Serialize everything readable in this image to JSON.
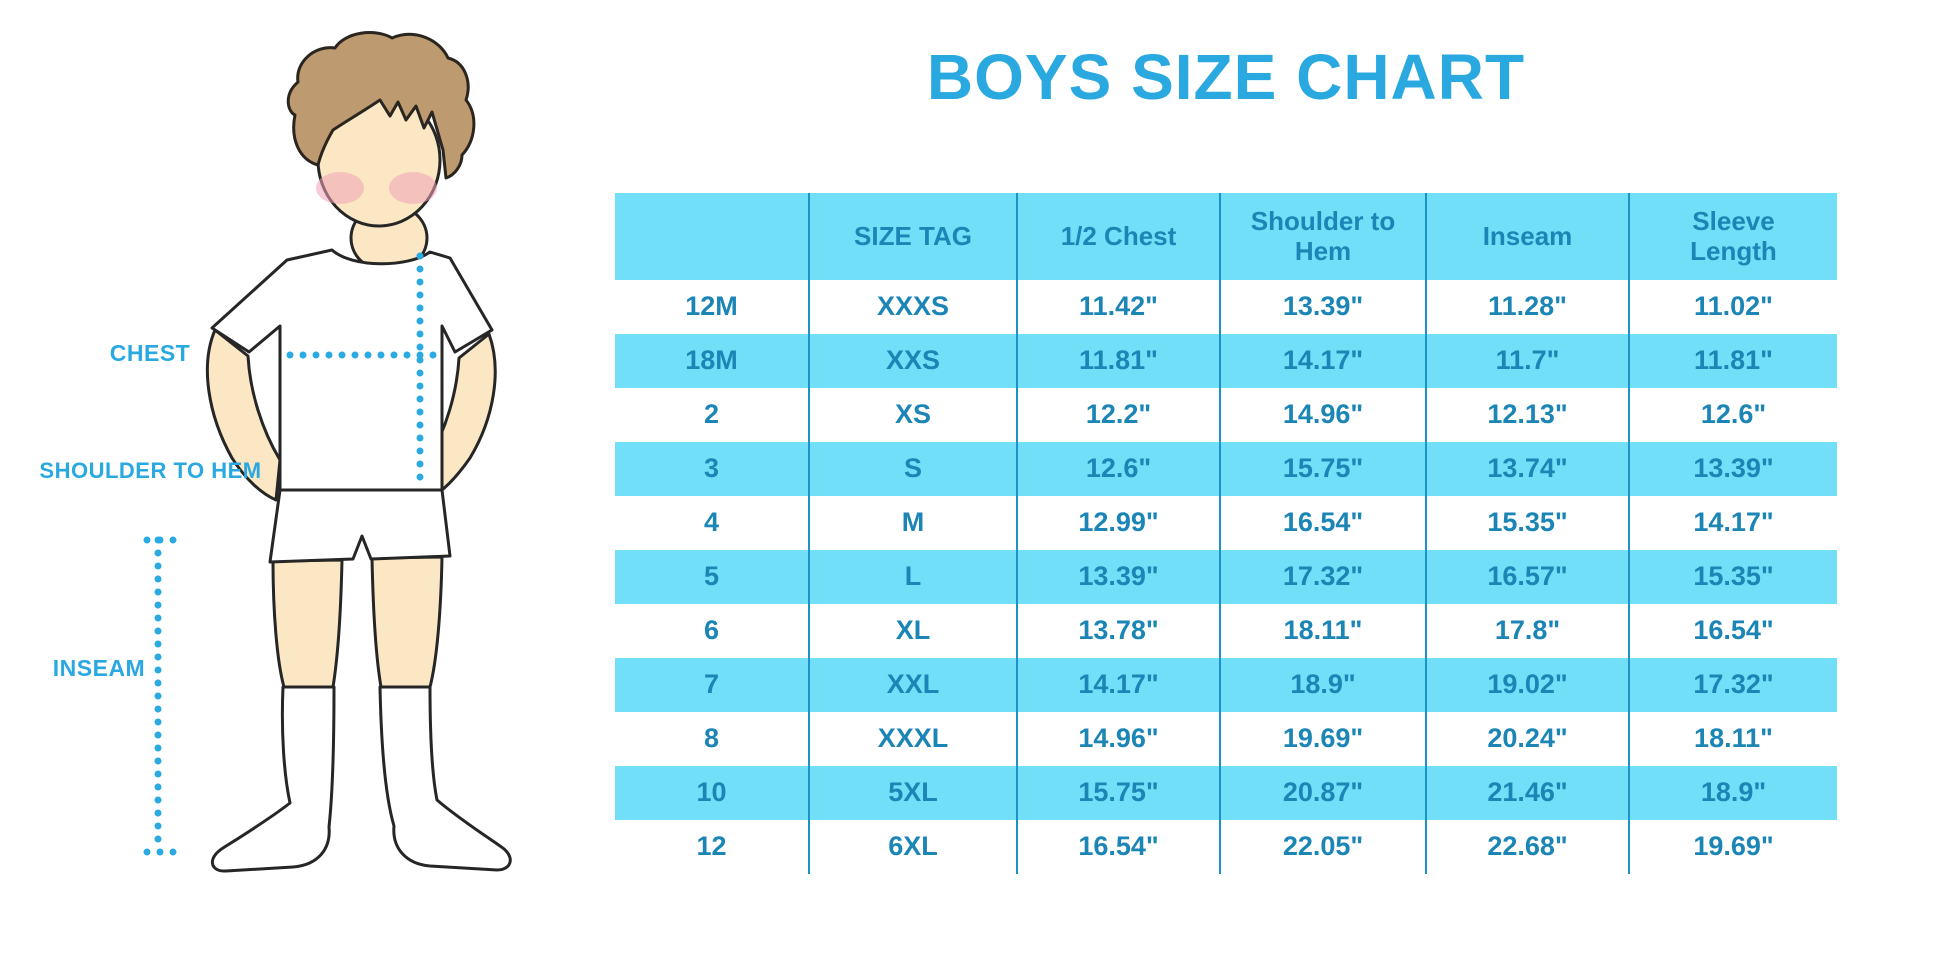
{
  "title": "BOYS SIZE CHART",
  "colors": {
    "title_blue": "#29A9E0",
    "table_text_blue": "#1B85B6",
    "row_fill_blue": "#70DFF7",
    "divider_blue": "#1B93C8",
    "dotted_line_blue": "#2BAAE2",
    "hair_brown": "#BD9A70",
    "skin": "#FBE7C4",
    "cheek_pink": "#F0A3B8"
  },
  "figure": {
    "chest_label": "CHEST",
    "shoulder_to_hem_label": "SHOULDER TO HEM",
    "inseam_label": "INSEAM"
  },
  "chart_data": {
    "type": "table",
    "title": "BOYS SIZE CHART",
    "columns": [
      "",
      "SIZE TAG",
      "1/2 Chest",
      "Shoulder to Hem",
      "Inseam",
      "Sleeve Length"
    ],
    "rows": [
      [
        "12M",
        "XXXS",
        "11.42\"",
        "13.39\"",
        "11.28\"",
        "11.02\""
      ],
      [
        "18M",
        "XXS",
        "11.81\"",
        "14.17\"",
        "11.7\"",
        "11.81\""
      ],
      [
        "2",
        "XS",
        "12.2\"",
        "14.96\"",
        "12.13\"",
        "12.6\""
      ],
      [
        "3",
        "S",
        "12.6\"",
        "15.75\"",
        "13.74\"",
        "13.39\""
      ],
      [
        "4",
        "M",
        "12.99\"",
        "16.54\"",
        "15.35\"",
        "14.17\""
      ],
      [
        "5",
        "L",
        "13.39\"",
        "17.32\"",
        "16.57\"",
        "15.35\""
      ],
      [
        "6",
        "XL",
        "13.78\"",
        "18.11\"",
        "17.8\"",
        "16.54\""
      ],
      [
        "7",
        "XXL",
        "14.17\"",
        "18.9\"",
        "19.02\"",
        "17.32\""
      ],
      [
        "8",
        "XXXL",
        "14.96\"",
        "19.69\"",
        "20.24\"",
        "18.11\""
      ],
      [
        "10",
        "5XL",
        "15.75\"",
        "20.87\"",
        "21.46\"",
        "18.9\""
      ],
      [
        "12",
        "6XL",
        "16.54\"",
        "22.05\"",
        "22.68\"",
        "19.69\""
      ]
    ],
    "alternating_row_fill": "rows 18M, 3, 5, 7, 10 have light-blue background; others white",
    "units": "inches"
  }
}
